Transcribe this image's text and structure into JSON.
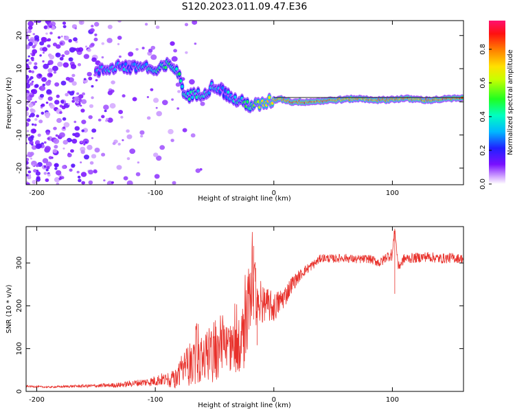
{
  "title": "S120.2023.011.09.47.E36",
  "chart_data": [
    {
      "type": "heatmap",
      "xlabel": "Height of straight line (km)",
      "ylabel": "Frequency (Hz)",
      "xlim": [
        -209,
        160
      ],
      "ylim": [
        -25,
        24.5
      ],
      "xticks": [
        -200,
        -100,
        0,
        100
      ],
      "yticks": [
        -20,
        -10,
        0,
        10,
        20
      ],
      "colorbar": {
        "label": "Normalized spectral amplitude",
        "range": [
          0,
          0.97
        ],
        "ticks": [
          0.0,
          0.2,
          0.4,
          0.6,
          0.8
        ],
        "tick_labels": [
          "0.0",
          "0.2",
          "0.4",
          "0.6",
          "0.8"
        ],
        "colormap": "rainbow (white-violet-blue-cyan-green-yellow-orange-red-magenta)"
      },
      "ridge": [
        {
          "x": -150,
          "y": 9,
          "a": 0.25
        },
        {
          "x": -140,
          "y": 10,
          "a": 0.3
        },
        {
          "x": -130,
          "y": 11,
          "a": 0.3
        },
        {
          "x": -120,
          "y": 10,
          "a": 0.3
        },
        {
          "x": -110,
          "y": 11,
          "a": 0.35
        },
        {
          "x": -100,
          "y": 9,
          "a": 0.4
        },
        {
          "x": -90,
          "y": 11,
          "a": 0.45
        },
        {
          "x": -82,
          "y": 10,
          "a": 0.45
        },
        {
          "x": -75,
          "y": 2,
          "a": 0.4
        },
        {
          "x": -65,
          "y": 2,
          "a": 0.4
        },
        {
          "x": -58,
          "y": 3,
          "a": 0.35
        },
        {
          "x": -50,
          "y": 5,
          "a": 0.35
        },
        {
          "x": -42,
          "y": 3,
          "a": 0.3
        },
        {
          "x": -35,
          "y": 1,
          "a": 0.35
        },
        {
          "x": -28,
          "y": 0,
          "a": 0.4
        },
        {
          "x": -20,
          "y": -1,
          "a": 0.5
        },
        {
          "x": -12,
          "y": -1,
          "a": 0.6
        },
        {
          "x": -5,
          "y": 0,
          "a": 0.7
        },
        {
          "x": 5,
          "y": 1,
          "a": 0.75
        },
        {
          "x": 15,
          "y": 0,
          "a": 0.85
        },
        {
          "x": 30,
          "y": 0,
          "a": 0.85
        },
        {
          "x": 50,
          "y": 0.5,
          "a": 0.8
        },
        {
          "x": 70,
          "y": 1,
          "a": 0.75
        },
        {
          "x": 90,
          "y": 0.5,
          "a": 0.8
        },
        {
          "x": 110,
          "y": 1,
          "a": 0.8
        },
        {
          "x": 130,
          "y": 0.5,
          "a": 0.8
        },
        {
          "x": 150,
          "y": 1,
          "a": 0.85
        },
        {
          "x": 160,
          "y": 1,
          "a": 0.85
        }
      ]
    },
    {
      "type": "line",
      "xlabel": "Height of straight line (km)",
      "ylabel": "SNR (10 * v/v)",
      "xlim": [
        -209,
        160
      ],
      "ylim": [
        0,
        385
      ],
      "xticks": [
        -200,
        -100,
        0,
        100
      ],
      "yticks": [
        0,
        100,
        200,
        300
      ],
      "series": [
        {
          "color": "#e8312b",
          "x": [
            -209,
            -190,
            -170,
            -150,
            -130,
            -115,
            -105,
            -95,
            -88,
            -82,
            -75,
            -68,
            -60,
            -52,
            -45,
            -38,
            -30,
            -25,
            -20,
            -17,
            -14,
            -12,
            -8,
            -4,
            0,
            5,
            10,
            15,
            20,
            25,
            30,
            35,
            40,
            50,
            60,
            70,
            80,
            90,
            95,
            100,
            102,
            105,
            110,
            120,
            130,
            140,
            150,
            160
          ],
          "y": [
            12,
            10,
            12,
            13,
            15,
            20,
            22,
            28,
            25,
            30,
            55,
            70,
            75,
            80,
            90,
            100,
            110,
            130,
            220,
            280,
            180,
            190,
            205,
            200,
            195,
            210,
            225,
            250,
            265,
            280,
            290,
            300,
            312,
            310,
            312,
            308,
            310,
            300,
            315,
            320,
            380,
            290,
            310,
            312,
            315,
            310,
            312,
            310
          ],
          "noise": [
            2,
            2,
            3,
            4,
            6,
            8,
            10,
            15,
            15,
            25,
            45,
            55,
            55,
            60,
            60,
            60,
            70,
            80,
            90,
            80,
            60,
            50,
            40,
            40,
            35,
            30,
            25,
            20,
            15,
            12,
            12,
            10,
            10,
            10,
            10,
            10,
            10,
            12,
            12,
            15,
            10,
            12,
            12,
            12,
            12,
            12,
            12,
            10
          ]
        }
      ]
    }
  ]
}
